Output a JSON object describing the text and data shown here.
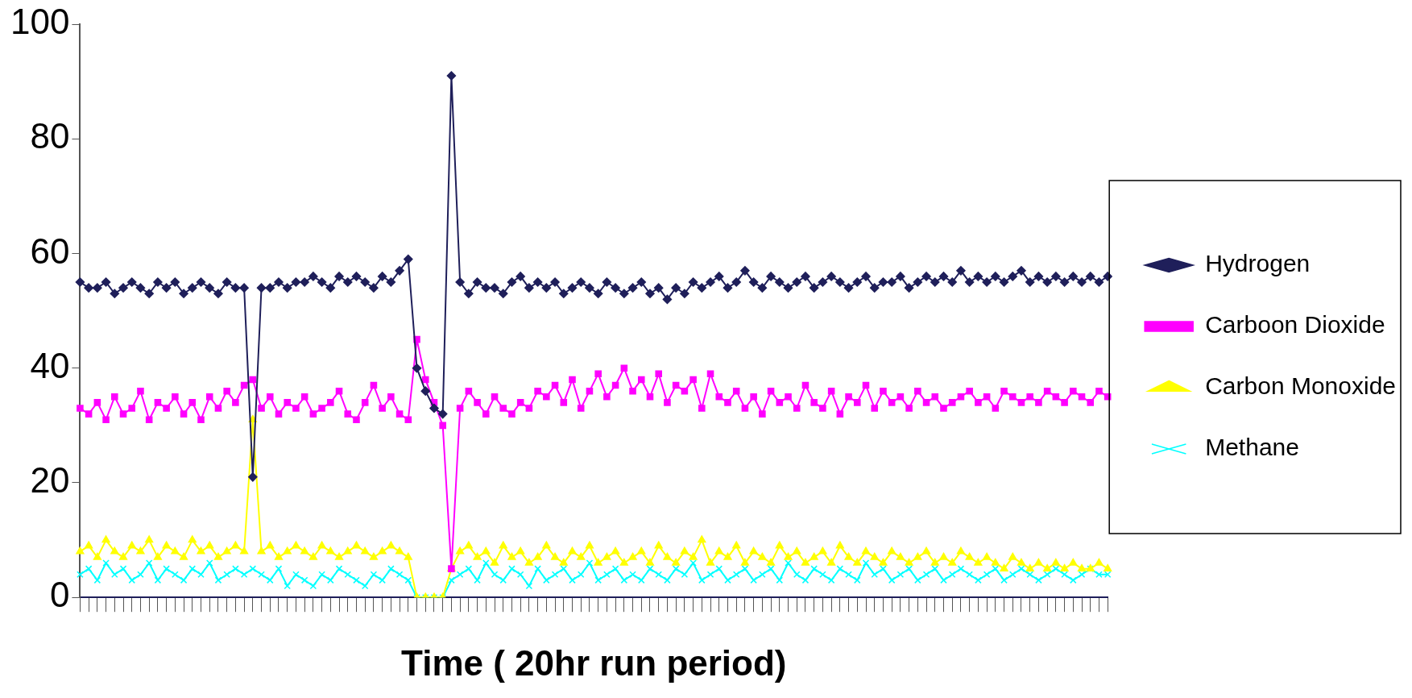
{
  "chart_data": {
    "type": "line",
    "xlabel": "Time ( 20hr run period)",
    "categories": [
      null,
      null,
      null,
      null,
      null,
      null,
      null,
      null,
      null,
      null,
      null,
      null,
      null,
      null,
      null,
      null,
      null,
      null,
      null,
      null,
      null,
      null,
      null,
      null,
      null,
      null,
      null,
      null,
      null,
      null,
      null,
      null,
      null,
      null,
      null,
      null,
      null,
      null,
      null,
      null,
      null,
      null,
      null,
      null,
      null,
      null,
      null,
      null,
      null,
      null,
      null,
      null,
      null,
      null,
      null,
      null,
      null,
      null,
      null,
      null,
      null,
      null,
      null,
      null,
      null,
      null,
      null,
      null,
      null,
      null,
      null,
      null,
      null,
      null,
      null,
      null,
      null,
      null,
      null,
      null,
      null,
      null,
      null,
      null,
      null,
      null,
      null,
      null,
      null,
      null,
      null,
      null,
      null,
      null,
      null,
      null,
      null,
      null,
      null,
      null,
      null,
      null,
      null,
      null,
      null,
      null,
      null,
      null,
      null,
      null,
      null,
      null,
      null,
      null,
      null,
      null,
      null,
      null,
      null,
      null
    ],
    "ylim": [
      0,
      100
    ],
    "yticks": [
      0,
      20,
      40,
      60,
      80,
      100
    ],
    "legend": "right",
    "tick_labels": "y",
    "series": [
      {
        "name": "Hydrogen",
        "color": "#1f1f5a",
        "marker": "diamond",
        "values": [
          55,
          54,
          54,
          55,
          53,
          54,
          55,
          54,
          53,
          55,
          54,
          55,
          53,
          54,
          55,
          54,
          53,
          55,
          54,
          54,
          21,
          54,
          54,
          55,
          54,
          55,
          55,
          56,
          55,
          54,
          56,
          55,
          56,
          55,
          54,
          56,
          55,
          57,
          59,
          40,
          36,
          33,
          32,
          91,
          55,
          53,
          55,
          54,
          54,
          53,
          55,
          56,
          54,
          55,
          54,
          55,
          53,
          54,
          55,
          54,
          53,
          55,
          54,
          53,
          54,
          55,
          53,
          54,
          52,
          54,
          53,
          55,
          54,
          55,
          56,
          54,
          55,
          57,
          55,
          54,
          56,
          55,
          54,
          55,
          56,
          54,
          55,
          56,
          55,
          54,
          55,
          56,
          54,
          55,
          55,
          56,
          54,
          55,
          56,
          55,
          56,
          55,
          57,
          55,
          56,
          55,
          56,
          55,
          56,
          57,
          55,
          56,
          55,
          56,
          55,
          56,
          55,
          56,
          55,
          56
        ]
      },
      {
        "name": "Carboon Dioxide",
        "color": "#ff00ff",
        "marker": "square",
        "values": [
          33,
          32,
          34,
          31,
          35,
          32,
          33,
          36,
          31,
          34,
          33,
          35,
          32,
          34,
          31,
          35,
          33,
          36,
          34,
          37,
          38,
          33,
          35,
          32,
          34,
          33,
          35,
          32,
          33,
          34,
          36,
          32,
          31,
          34,
          37,
          33,
          35,
          32,
          31,
          45,
          38,
          34,
          30,
          5,
          33,
          36,
          34,
          32,
          35,
          33,
          32,
          34,
          33,
          36,
          35,
          37,
          34,
          38,
          33,
          36,
          39,
          35,
          37,
          40,
          36,
          38,
          35,
          39,
          34,
          37,
          36,
          38,
          33,
          39,
          35,
          34,
          36,
          33,
          35,
          32,
          36,
          34,
          35,
          33,
          37,
          34,
          33,
          36,
          32,
          35,
          34,
          37,
          33,
          36,
          34,
          35,
          33,
          36,
          34,
          35,
          33,
          34,
          35,
          36,
          34,
          35,
          33,
          36,
          35,
          34,
          35,
          34,
          36,
          35,
          34,
          36,
          35,
          34,
          36,
          35
        ]
      },
      {
        "name": "Carbon Monoxide",
        "color": "#ffff00",
        "marker": "triangle",
        "values": [
          8,
          9,
          7,
          10,
          8,
          7,
          9,
          8,
          10,
          7,
          9,
          8,
          7,
          10,
          8,
          9,
          7,
          8,
          9,
          8,
          31,
          8,
          9,
          7,
          8,
          9,
          8,
          7,
          9,
          8,
          7,
          8,
          9,
          8,
          7,
          8,
          9,
          8,
          7,
          0,
          0,
          0,
          0,
          5,
          8,
          9,
          7,
          8,
          6,
          9,
          7,
          8,
          6,
          7,
          9,
          7,
          6,
          8,
          7,
          9,
          6,
          7,
          8,
          6,
          7,
          8,
          6,
          9,
          7,
          6,
          8,
          7,
          10,
          6,
          8,
          7,
          9,
          6,
          8,
          7,
          6,
          9,
          7,
          8,
          6,
          7,
          8,
          6,
          9,
          7,
          6,
          8,
          7,
          6,
          8,
          7,
          6,
          7,
          8,
          6,
          7,
          6,
          8,
          7,
          6,
          7,
          6,
          5,
          7,
          6,
          5,
          6,
          5,
          6,
          5,
          6,
          5,
          5,
          6,
          5
        ]
      },
      {
        "name": "Methane",
        "color": "#00ffff",
        "marker": "cross",
        "values": [
          4,
          5,
          3,
          6,
          4,
          5,
          3,
          4,
          6,
          3,
          5,
          4,
          3,
          5,
          4,
          6,
          3,
          4,
          5,
          4,
          5,
          4,
          3,
          5,
          2,
          4,
          3,
          2,
          4,
          3,
          5,
          4,
          3,
          2,
          4,
          3,
          5,
          4,
          3,
          0,
          0,
          0,
          0,
          3,
          4,
          5,
          3,
          6,
          4,
          3,
          5,
          4,
          2,
          5,
          3,
          4,
          5,
          3,
          4,
          6,
          3,
          4,
          5,
          3,
          4,
          3,
          5,
          4,
          3,
          5,
          4,
          6,
          3,
          4,
          5,
          3,
          4,
          5,
          3,
          4,
          5,
          3,
          6,
          4,
          3,
          5,
          4,
          3,
          5,
          4,
          3,
          6,
          4,
          5,
          3,
          4,
          5,
          3,
          4,
          5,
          3,
          4,
          5,
          4,
          3,
          4,
          5,
          3,
          4,
          5,
          4,
          3,
          4,
          5,
          4,
          3,
          4,
          5,
          4,
          4
        ]
      }
    ]
  }
}
